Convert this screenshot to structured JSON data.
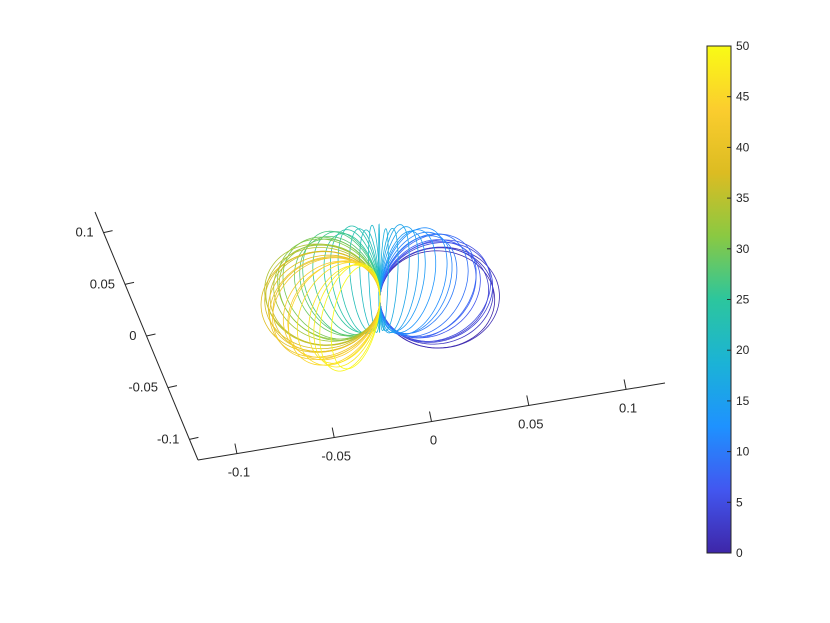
{
  "chart_data": {
    "type": "line",
    "title": "",
    "xlabel": "",
    "ylabel": "",
    "zlabel": "",
    "plot_kind": "3d-curves-colored-by-index",
    "curve_count": 51,
    "curve_shape": "circles through a common origin point, rotating about a vertical axis",
    "curve_radius": 0.055,
    "curve_index_range": [
      0,
      50
    ],
    "x_axis": {
      "ticks": [
        "-0.1",
        "-0.05",
        "0",
        "0.05",
        "0.1"
      ],
      "lim": [
        -0.12,
        0.12
      ]
    },
    "y_axis": {
      "ticks": [
        "-0.1",
        "-0.05",
        "0",
        "0.05",
        "0.1"
      ],
      "lim": [
        -0.12,
        0.12
      ]
    },
    "colorbar": {
      "colormap": "parula",
      "lim": [
        0,
        50
      ],
      "ticks": [
        "0",
        "5",
        "10",
        "15",
        "20",
        "25",
        "30",
        "35",
        "40",
        "45",
        "50"
      ]
    },
    "colormap_stops": [
      "#3e26a8",
      "#4257f0",
      "#1e92ff",
      "#1bb3d6",
      "#2cc69d",
      "#8ac942",
      "#dcbc22",
      "#fbcd2e",
      "#f9fb15"
    ],
    "grid": false,
    "legend": "none"
  }
}
